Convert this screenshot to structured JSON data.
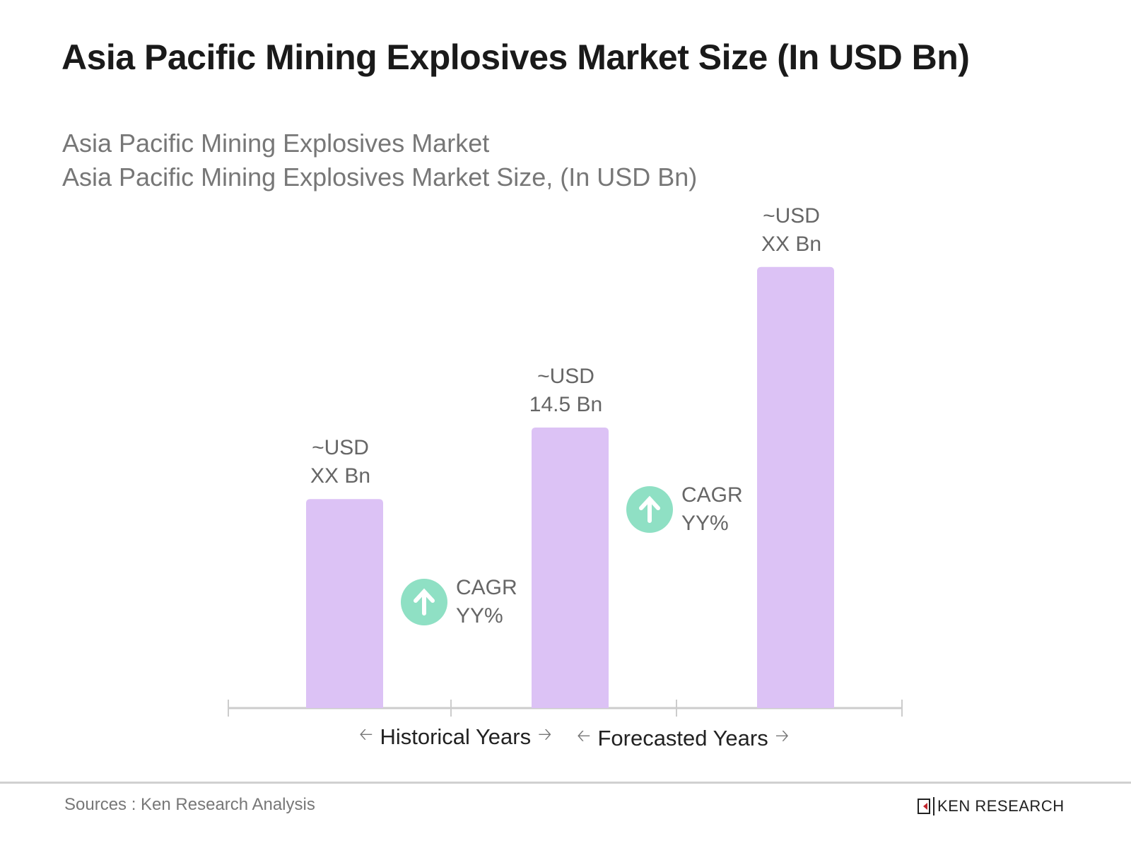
{
  "title": "Asia Pacific Mining Explosives Market Size (In USD Bn)",
  "subtitle_1": "Asia Pacific Mining Explosives Market",
  "subtitle_2": "Asia Pacific Mining Explosives Market Size, (In USD Bn)",
  "colors": {
    "bar": "#dcc2f5",
    "cagr_circle": "#8fe0c4",
    "axis": "#cccccc"
  },
  "chart_data": {
    "type": "bar",
    "categories": [
      "",
      "",
      ""
    ],
    "values": [
      10.8,
      14.5,
      22.8
    ],
    "data_labels": [
      {
        "line1": "~USD",
        "line2": "XX Bn"
      },
      {
        "line1": "~USD",
        "line2": "14.5 Bn"
      },
      {
        "line1": "~USD",
        "line2": "XX Bn"
      }
    ],
    "ylim": [
      0,
      30
    ],
    "grid": false,
    "annotations": [
      {
        "icon": "arrow-up-icon",
        "line1": "CAGR",
        "line2": "YY%"
      },
      {
        "icon": "arrow-up-icon",
        "line1": "CAGR",
        "line2": "YY%"
      }
    ],
    "periods": [
      "Historical Years",
      "Forecasted Years"
    ]
  },
  "footer": {
    "source": "Sources : Ken Research Analysis",
    "logo": "KEN RESEARCH"
  }
}
